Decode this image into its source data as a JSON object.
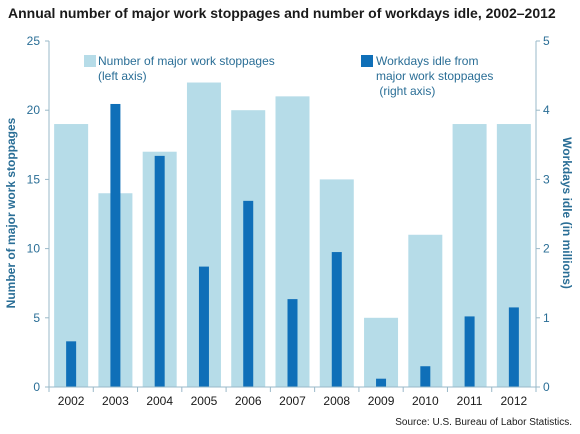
{
  "title": "Annual number of major work stoppages and number of workdays idle, 2002–2012",
  "source": "Source: U.S. Bureau of Labor Statistics.",
  "chart_data": {
    "type": "bar",
    "categories": [
      "2002",
      "2003",
      "2004",
      "2005",
      "2006",
      "2007",
      "2008",
      "2009",
      "2010",
      "2011",
      "2012"
    ],
    "series": [
      {
        "name": "Number of major work stoppages (left axis)",
        "axis": "left",
        "color": "#b6dce8",
        "values": [
          19,
          14,
          17,
          22,
          20,
          21,
          15,
          5,
          11,
          19,
          19
        ]
      },
      {
        "name": "Workdays idle from major work stoppages (right axis)",
        "axis": "right",
        "color": "#0f6fb8",
        "values": [
          0.66,
          4.09,
          3.34,
          1.74,
          2.69,
          1.27,
          1.95,
          0.12,
          0.3,
          1.02,
          1.15
        ]
      }
    ],
    "ylabel_left": "Number of major work stoppages",
    "ylabel_right": "Workdays idle (in millions)",
    "ylim_left": [
      0,
      25
    ],
    "ylim_right": [
      0,
      5
    ],
    "yticks_left": [
      "0",
      "5",
      "10",
      "15",
      "20",
      "25"
    ],
    "yticks_right": [
      "0",
      "1",
      "2",
      "3",
      "4",
      "5"
    ],
    "legend": {
      "item1": {
        "line1": "Number of major  work stoppages",
        "line2": "(left axis)"
      },
      "item2": {
        "line1": "Workdays idle from",
        "line2": "major work stoppages",
        "line3": " (right axis)"
      }
    },
    "grid": false
  }
}
